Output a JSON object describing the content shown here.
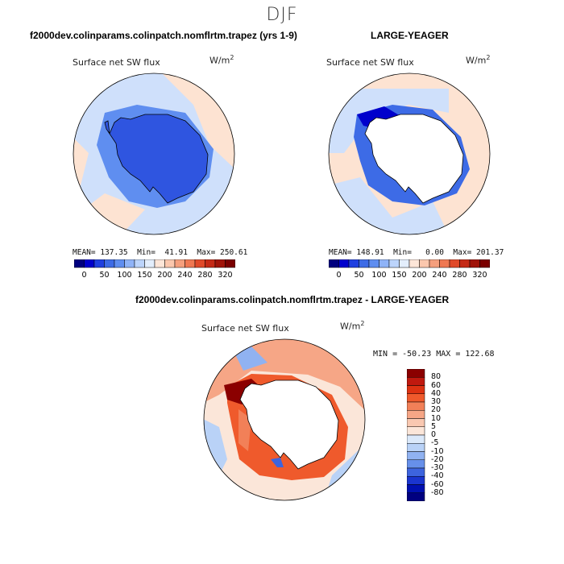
{
  "season": "DJF",
  "panels": [
    {
      "title": "f2000dev.colinparams.colinpatch.nomflrtm.trapez (yrs 1-9)",
      "variable": "Surface net SW flux",
      "units_base": "W/m",
      "units_exp": "2",
      "stats": "MEAN= 137.35  Min=  41.91  Max= 250.61"
    },
    {
      "title": "LARGE-YEAGER",
      "variable": "Surface net SW flux",
      "units_base": "W/m",
      "units_exp": "2",
      "stats": "MEAN= 148.91  Min=   0.00  Max= 201.37"
    },
    {
      "title": "f2000dev.colinparams.colinpatch.nomflrtm.trapez - LARGE-YEAGER",
      "variable": "Surface net SW flux",
      "units_base": "W/m",
      "units_exp": "2",
      "stats": "MIN = -50.23 MAX = 122.68"
    }
  ],
  "colorbar_abs": {
    "labels": [
      "0",
      "50",
      "100",
      "150",
      "200",
      "240",
      "280",
      "320"
    ],
    "colors": [
      "#00007f",
      "#0000cc",
      "#1f3fe0",
      "#3d6be6",
      "#5f8ef0",
      "#8fb3f7",
      "#bcd4fb",
      "#e3eefc",
      "#fde6d8",
      "#fbc7ad",
      "#f59f7d",
      "#ef7852",
      "#e04a2a",
      "#c42a16",
      "#a01409",
      "#7a0000"
    ]
  },
  "colorbar_diff": {
    "labels": [
      "80",
      "60",
      "40",
      "30",
      "20",
      "10",
      "5",
      "0",
      "-5",
      "-10",
      "-20",
      "-30",
      "-40",
      "-60",
      "-80"
    ],
    "colors": [
      "#8b0000",
      "#c0190f",
      "#dd3212",
      "#ef5a2c",
      "#f28058",
      "#f6a686",
      "#f9c8b1",
      "#fbe6d9",
      "#dbe9fa",
      "#b9d2f7",
      "#90b2f1",
      "#6790ea",
      "#3d64de",
      "#1a35cf",
      "#0010b0",
      "#000080"
    ]
  },
  "colors": {
    "antarctica_model": "#2f55e0",
    "land_obs": "#ffffff",
    "ocean_light_blue": "#cfe0fb",
    "ocean_light_peach": "#fde3d2"
  }
}
